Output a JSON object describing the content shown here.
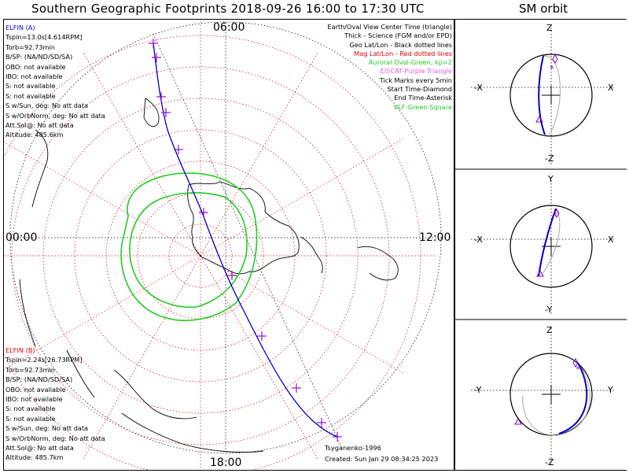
{
  "title": "Southern Geographic Footprints 2018-09-26 16:00 to 17:30 UTC",
  "sm_title": "SM orbit",
  "clock_labels": {
    "top": "06:00",
    "left": "00:00",
    "right": "12:00",
    "bottom": "18:00"
  },
  "elfin_a": {
    "name": "ELFIN (A)",
    "lines": [
      "Tspin=13.0s[4.614RPM]",
      "Torb=92.73min",
      "B/SP: (NA/ND/SD/SA)",
      "OBO: not available",
      "IBO: not available",
      "S: not available",
      "S: not available",
      "S w/Sun, deg: No att data",
      "S w/OrbNorm, deg: No att data",
      "Att.Sol@: No att data",
      "Altitude: 485.6km"
    ]
  },
  "elfin_b": {
    "name": "ELFIN (B)",
    "lines": [
      "Tspin=2.24s[26.73RPM]",
      "Torb=92.73min",
      "B/SP: (NA/ND/SD/SA)",
      "OBO: not available",
      "IBO: not available",
      "S: not available",
      "S: not available",
      "S w/Sun, deg: No att data",
      "S w/OrbNorm, deg: No att data",
      "Att.Sol@: No att data",
      "Altitude: 485.7km"
    ]
  },
  "legend": [
    {
      "text": "Earth/Oval View Center Time (triangle)",
      "color": "#000000"
    },
    {
      "text": "Thick - Science (FGM and/or EPD)",
      "color": "#000000"
    },
    {
      "text": "Geo Lat/Lon - Black dotted lines",
      "color": "#000000"
    },
    {
      "text": "Mag Lat/Lon - Red dotted lines",
      "color": "#e00000"
    },
    {
      "text": "Auroral Oval-Green, kp=2",
      "color": "#22cc22"
    },
    {
      "text": "EISCAT-Purple Triangle",
      "color": "#e060e0"
    },
    {
      "text": "Tick Marks every 5min",
      "color": "#000000"
    },
    {
      "text": "Start Time-Diamond",
      "color": "#000000"
    },
    {
      "text": "End Time-Asterisk",
      "color": "#000000"
    },
    {
      "text": "VLF-Green Square",
      "color": "#22cc22"
    }
  ],
  "model": "Tsyganenko-1996",
  "created": "Created: Sun Jan 29 08:34:25 2023",
  "sm_panels": [
    {
      "top": "Z",
      "bottom": "-Z",
      "left": "-X",
      "right": "X"
    },
    {
      "top": "Y",
      "bottom": "-Y",
      "left": "-X",
      "right": "X"
    },
    {
      "top": "Z",
      "bottom": "-Z",
      "left": "-Y",
      "right": "Y"
    }
  ],
  "colors": {
    "orbit": "#0000cc",
    "mag_grid": "#e00000",
    "oval": "#22cc22",
    "ticks": "#8800cc"
  }
}
